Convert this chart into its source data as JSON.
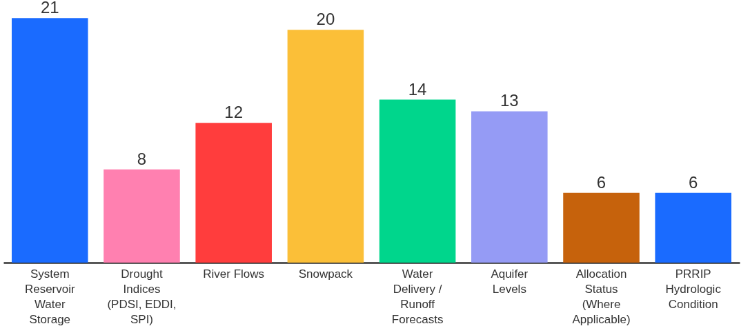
{
  "chart_data": {
    "type": "bar",
    "categories": [
      "System Reservoir Water Storage",
      "Drought Indices (PDSI, EDDI, SPI)",
      "River Flows",
      "Snowpack",
      "Water Delivery / Runoff Forecasts",
      "Aquifer Levels",
      "Allocation Status (Where Applicable)",
      "PRRIP Hydrologic Condition"
    ],
    "values": [
      21,
      8,
      12,
      20,
      14,
      13,
      6,
      6
    ],
    "colors": [
      "#1a6bff",
      "#ff80b0",
      "#ff3d3d",
      "#fbbf38",
      "#00d68c",
      "#959bf5",
      "#c6620c",
      "#1a6bff"
    ],
    "data_labels": true
  }
}
